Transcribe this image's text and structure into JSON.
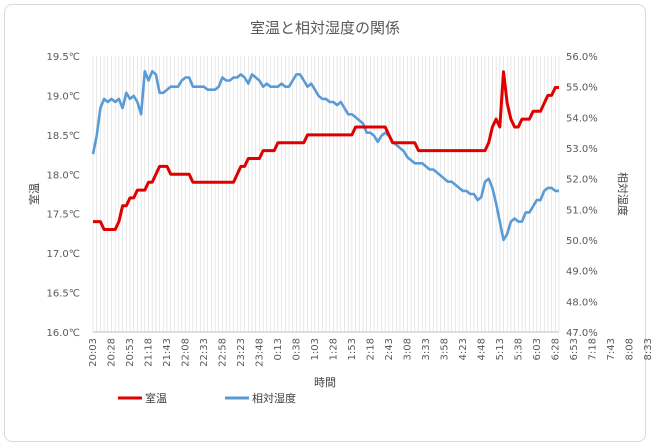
{
  "chart_data": {
    "type": "line",
    "title": "室温と相対湿度の関係",
    "xlabel": "時間",
    "ylabel_left": "室温",
    "ylabel_right": "相対湿度",
    "y_left_range": [
      16.0,
      19.5
    ],
    "y_left_ticks": [
      "16.0℃",
      "16.5℃",
      "17.0℃",
      "17.5℃",
      "18.0℃",
      "18.5℃",
      "19.0℃",
      "19.5℃"
    ],
    "y_right_range": [
      47.0,
      56.0
    ],
    "y_right_ticks": [
      "47.0%",
      "48.0%",
      "49.0%",
      "50.0%",
      "51.0%",
      "52.0%",
      "53.0%",
      "54.0%",
      "55.0%",
      "56.0%"
    ],
    "x_tick_labels": [
      "20:03",
      "20:28",
      "20:53",
      "21:18",
      "21:43",
      "22:08",
      "22:33",
      "22:58",
      "23:23",
      "23:48",
      "0:13",
      "0:38",
      "1:03",
      "1:28",
      "1:53",
      "2:18",
      "2:43",
      "3:08",
      "3:33",
      "3:58",
      "4:23",
      "4:48",
      "5:13",
      "5:38",
      "6:03",
      "6:28",
      "6:53",
      "7:18",
      "7:43",
      "8:08",
      "8:33"
    ],
    "grid": "vertical",
    "legend_position": "bottom-left",
    "series": [
      {
        "name": "室温",
        "axis": "left",
        "color": "#e00000",
        "points": [
          [
            0,
            17.4
          ],
          [
            1,
            17.4
          ],
          [
            2,
            17.4
          ],
          [
            3,
            17.3
          ],
          [
            4,
            17.3
          ],
          [
            5,
            17.3
          ],
          [
            6,
            17.3
          ],
          [
            7,
            17.4
          ],
          [
            8,
            17.6
          ],
          [
            9,
            17.6
          ],
          [
            10,
            17.7
          ],
          [
            11,
            17.7
          ],
          [
            12,
            17.8
          ],
          [
            13,
            17.8
          ],
          [
            14,
            17.8
          ],
          [
            15,
            17.9
          ],
          [
            16,
            17.9
          ],
          [
            17,
            18.0
          ],
          [
            18,
            18.1
          ],
          [
            19,
            18.1
          ],
          [
            20,
            18.1
          ],
          [
            21,
            18.0
          ],
          [
            22,
            18.0
          ],
          [
            23,
            18.0
          ],
          [
            24,
            18.0
          ],
          [
            25,
            18.0
          ],
          [
            26,
            18.0
          ],
          [
            27,
            17.9
          ],
          [
            28,
            17.9
          ],
          [
            29,
            17.9
          ],
          [
            30,
            17.9
          ],
          [
            31,
            17.9
          ],
          [
            32,
            17.9
          ],
          [
            33,
            17.9
          ],
          [
            34,
            17.9
          ],
          [
            35,
            17.9
          ],
          [
            36,
            17.9
          ],
          [
            37,
            17.9
          ],
          [
            38,
            17.9
          ],
          [
            39,
            18.0
          ],
          [
            40,
            18.1
          ],
          [
            41,
            18.1
          ],
          [
            42,
            18.2
          ],
          [
            43,
            18.2
          ],
          [
            44,
            18.2
          ],
          [
            45,
            18.2
          ],
          [
            46,
            18.3
          ],
          [
            47,
            18.3
          ],
          [
            48,
            18.3
          ],
          [
            49,
            18.3
          ],
          [
            50,
            18.4
          ],
          [
            51,
            18.4
          ],
          [
            52,
            18.4
          ],
          [
            53,
            18.4
          ],
          [
            54,
            18.4
          ],
          [
            55,
            18.4
          ],
          [
            56,
            18.4
          ],
          [
            57,
            18.4
          ],
          [
            58,
            18.5
          ],
          [
            59,
            18.5
          ],
          [
            60,
            18.5
          ],
          [
            61,
            18.5
          ],
          [
            62,
            18.5
          ],
          [
            63,
            18.5
          ],
          [
            64,
            18.5
          ],
          [
            65,
            18.5
          ],
          [
            66,
            18.5
          ],
          [
            67,
            18.5
          ],
          [
            68,
            18.5
          ],
          [
            69,
            18.5
          ],
          [
            70,
            18.5
          ],
          [
            71,
            18.6
          ],
          [
            72,
            18.6
          ],
          [
            73,
            18.6
          ],
          [
            74,
            18.6
          ],
          [
            75,
            18.6
          ],
          [
            76,
            18.6
          ],
          [
            77,
            18.6
          ],
          [
            78,
            18.6
          ],
          [
            79,
            18.6
          ],
          [
            80,
            18.5
          ],
          [
            81,
            18.4
          ],
          [
            82,
            18.4
          ],
          [
            83,
            18.4
          ],
          [
            84,
            18.4
          ],
          [
            85,
            18.4
          ],
          [
            86,
            18.4
          ],
          [
            87,
            18.4
          ],
          [
            88,
            18.3
          ],
          [
            89,
            18.3
          ],
          [
            90,
            18.3
          ],
          [
            91,
            18.3
          ],
          [
            92,
            18.3
          ],
          [
            93,
            18.3
          ],
          [
            94,
            18.3
          ],
          [
            95,
            18.3
          ],
          [
            96,
            18.3
          ],
          [
            97,
            18.3
          ],
          [
            98,
            18.3
          ],
          [
            99,
            18.3
          ],
          [
            100,
            18.3
          ],
          [
            101,
            18.3
          ],
          [
            102,
            18.3
          ],
          [
            103,
            18.3
          ],
          [
            104,
            18.3
          ],
          [
            105,
            18.3
          ],
          [
            106,
            18.3
          ],
          [
            107,
            18.4
          ],
          [
            108,
            18.6
          ],
          [
            109,
            18.7
          ],
          [
            110,
            18.6
          ],
          [
            111,
            19.3
          ],
          [
            112,
            18.9
          ],
          [
            113,
            18.7
          ],
          [
            114,
            18.6
          ],
          [
            115,
            18.6
          ],
          [
            116,
            18.7
          ],
          [
            117,
            18.7
          ],
          [
            118,
            18.7
          ],
          [
            119,
            18.8
          ],
          [
            120,
            18.8
          ],
          [
            121,
            18.8
          ],
          [
            122,
            18.9
          ],
          [
            123,
            19.0
          ],
          [
            124,
            19.0
          ],
          [
            125,
            19.1
          ],
          [
            126,
            19.1
          ]
        ]
      },
      {
        "name": "相対湿度",
        "axis": "right",
        "color": "#5b9bd5",
        "points": [
          [
            0,
            52.8
          ],
          [
            1,
            53.4
          ],
          [
            2,
            54.3
          ],
          [
            3,
            54.6
          ],
          [
            4,
            54.5
          ],
          [
            5,
            54.6
          ],
          [
            6,
            54.5
          ],
          [
            7,
            54.6
          ],
          [
            8,
            54.3
          ],
          [
            9,
            54.8
          ],
          [
            10,
            54.6
          ],
          [
            11,
            54.7
          ],
          [
            12,
            54.5
          ],
          [
            13,
            54.1
          ],
          [
            14,
            55.5
          ],
          [
            15,
            55.2
          ],
          [
            16,
            55.5
          ],
          [
            17,
            55.4
          ],
          [
            18,
            54.8
          ],
          [
            19,
            54.8
          ],
          [
            20,
            54.9
          ],
          [
            21,
            55.0
          ],
          [
            22,
            55.0
          ],
          [
            23,
            55.0
          ],
          [
            24,
            55.2
          ],
          [
            25,
            55.3
          ],
          [
            26,
            55.3
          ],
          [
            27,
            55.0
          ],
          [
            28,
            55.0
          ],
          [
            29,
            55.0
          ],
          [
            30,
            55.0
          ],
          [
            31,
            54.9
          ],
          [
            32,
            54.9
          ],
          [
            33,
            54.9
          ],
          [
            34,
            55.0
          ],
          [
            35,
            55.3
          ],
          [
            36,
            55.2
          ],
          [
            37,
            55.2
          ],
          [
            38,
            55.3
          ],
          [
            39,
            55.3
          ],
          [
            40,
            55.4
          ],
          [
            41,
            55.3
          ],
          [
            42,
            55.1
          ],
          [
            43,
            55.4
          ],
          [
            44,
            55.3
          ],
          [
            45,
            55.2
          ],
          [
            46,
            55.0
          ],
          [
            47,
            55.1
          ],
          [
            48,
            55.0
          ],
          [
            49,
            55.0
          ],
          [
            50,
            55.0
          ],
          [
            51,
            55.1
          ],
          [
            52,
            55.0
          ],
          [
            53,
            55.0
          ],
          [
            54,
            55.2
          ],
          [
            55,
            55.4
          ],
          [
            56,
            55.4
          ],
          [
            57,
            55.2
          ],
          [
            58,
            55.0
          ],
          [
            59,
            55.1
          ],
          [
            60,
            54.9
          ],
          [
            61,
            54.7
          ],
          [
            62,
            54.6
          ],
          [
            63,
            54.6
          ],
          [
            64,
            54.5
          ],
          [
            65,
            54.5
          ],
          [
            66,
            54.4
          ],
          [
            67,
            54.5
          ],
          [
            68,
            54.3
          ],
          [
            69,
            54.1
          ],
          [
            70,
            54.1
          ],
          [
            71,
            54.0
          ],
          [
            72,
            53.9
          ],
          [
            73,
            53.8
          ],
          [
            74,
            53.5
          ],
          [
            75,
            53.5
          ],
          [
            76,
            53.4
          ],
          [
            77,
            53.2
          ],
          [
            78,
            53.4
          ],
          [
            79,
            53.5
          ],
          [
            80,
            53.4
          ],
          [
            81,
            53.2
          ],
          [
            82,
            53.1
          ],
          [
            83,
            53.0
          ],
          [
            84,
            52.9
          ],
          [
            85,
            52.7
          ],
          [
            86,
            52.6
          ],
          [
            87,
            52.5
          ],
          [
            88,
            52.5
          ],
          [
            89,
            52.5
          ],
          [
            90,
            52.4
          ],
          [
            91,
            52.3
          ],
          [
            92,
            52.3
          ],
          [
            93,
            52.2
          ],
          [
            94,
            52.1
          ],
          [
            95,
            52.0
          ],
          [
            96,
            51.9
          ],
          [
            97,
            51.9
          ],
          [
            98,
            51.8
          ],
          [
            99,
            51.7
          ],
          [
            100,
            51.6
          ],
          [
            101,
            51.6
          ],
          [
            102,
            51.5
          ],
          [
            103,
            51.5
          ],
          [
            104,
            51.3
          ],
          [
            105,
            51.4
          ],
          [
            106,
            51.9
          ],
          [
            107,
            52.0
          ],
          [
            108,
            51.7
          ],
          [
            109,
            51.2
          ],
          [
            110,
            50.6
          ],
          [
            111,
            50.0
          ],
          [
            112,
            50.2
          ],
          [
            113,
            50.6
          ],
          [
            114,
            50.7
          ],
          [
            115,
            50.6
          ],
          [
            116,
            50.6
          ],
          [
            117,
            50.9
          ],
          [
            118,
            50.9
          ],
          [
            119,
            51.1
          ],
          [
            120,
            51.3
          ],
          [
            121,
            51.3
          ],
          [
            122,
            51.6
          ],
          [
            123,
            51.7
          ],
          [
            124,
            51.7
          ],
          [
            125,
            51.6
          ],
          [
            126,
            51.6
          ]
        ]
      }
    ]
  }
}
